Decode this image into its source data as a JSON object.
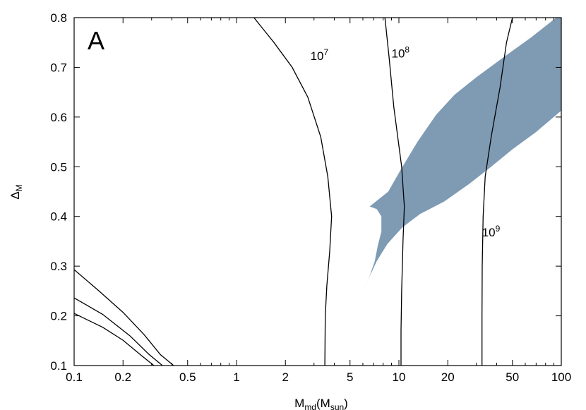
{
  "chart_data": {
    "type": "line",
    "panel_label": "A",
    "xlabel": {
      "main": "M",
      "sub1": "md",
      "mid": "(M",
      "sub2": "sun",
      "end": ")"
    },
    "ylabel": {
      "main": "Δ",
      "sub": "M"
    },
    "x_scale": "log",
    "xlim": [
      0.1,
      100
    ],
    "ylim": [
      0.1,
      0.8
    ],
    "x_ticks": [
      0.1,
      0.2,
      0.5,
      1,
      2,
      5,
      10,
      20,
      50,
      100
    ],
    "x_tick_labels": [
      "0.1",
      "0.2",
      "0.5",
      "1",
      "2",
      "5",
      "10",
      "20",
      "50",
      "100"
    ],
    "y_ticks": [
      0.1,
      0.2,
      0.3,
      0.4,
      0.5,
      0.6,
      0.7,
      0.8
    ],
    "y_tick_labels": [
      "0.1",
      "0.2",
      "0.3",
      "0.4",
      "0.5",
      "0.6",
      "0.7",
      "0.8"
    ],
    "grid": false,
    "shaded_region": {
      "color": "#7f9bb4",
      "boundary": [
        [
          5.6,
          0.228
        ],
        [
          6.4,
          0.27
        ],
        [
          7.3,
          0.31
        ],
        [
          8.5,
          0.345
        ],
        [
          10.5,
          0.378
        ],
        [
          13.5,
          0.405
        ],
        [
          19,
          0.43
        ],
        [
          27,
          0.465
        ],
        [
          37,
          0.5
        ],
        [
          50,
          0.535
        ],
        [
          70,
          0.57
        ],
        [
          100,
          0.613
        ],
        [
          100,
          0.8
        ],
        [
          93,
          0.8
        ],
        [
          65,
          0.76
        ],
        [
          44,
          0.72
        ],
        [
          30,
          0.68
        ],
        [
          22,
          0.645
        ],
        [
          17,
          0.605
        ],
        [
          13,
          0.55
        ],
        [
          10.3,
          0.495
        ],
        [
          8.6,
          0.45
        ],
        [
          6.6,
          0.42
        ],
        [
          7.3,
          0.415
        ],
        [
          7.8,
          0.4
        ],
        [
          7.8,
          0.37
        ],
        [
          7.4,
          0.34
        ],
        [
          7.1,
          0.31
        ],
        [
          6.6,
          0.28
        ],
        [
          5.6,
          0.228
        ]
      ]
    },
    "contours": [
      {
        "label_base": "10",
        "label_exp": "7",
        "label_at": [
          2.85,
          0.715
        ],
        "points": [
          [
            1.28,
            0.8
          ],
          [
            1.7,
            0.75
          ],
          [
            2.2,
            0.7
          ],
          [
            2.75,
            0.64
          ],
          [
            3.3,
            0.56
          ],
          [
            3.65,
            0.48
          ],
          [
            3.85,
            0.4
          ],
          [
            3.75,
            0.33
          ],
          [
            3.6,
            0.26
          ],
          [
            3.52,
            0.2
          ],
          [
            3.5,
            0.1
          ]
        ]
      },
      {
        "label_base": "10",
        "label_exp": "8",
        "label_at": [
          9.0,
          0.72
        ],
        "points": [
          [
            8.2,
            0.8
          ],
          [
            8.7,
            0.72
          ],
          [
            9.3,
            0.62
          ],
          [
            10.4,
            0.5
          ],
          [
            10.8,
            0.42
          ],
          [
            10.6,
            0.35
          ],
          [
            10.4,
            0.25
          ],
          [
            10.3,
            0.17
          ],
          [
            10.3,
            0.1
          ]
        ]
      },
      {
        "label_base": "10",
        "label_exp": "9",
        "label_at": [
          32.5,
          0.36
        ],
        "points": [
          [
            50,
            0.8
          ],
          [
            46,
            0.75
          ],
          [
            42,
            0.66
          ],
          [
            37,
            0.56
          ],
          [
            34,
            0.48
          ],
          [
            33,
            0.4
          ],
          [
            32.6,
            0.3
          ],
          [
            32.5,
            0.2
          ],
          [
            32.5,
            0.1
          ]
        ]
      },
      {
        "points": [
          [
            0.1,
            0.293
          ],
          [
            0.14,
            0.252
          ],
          [
            0.2,
            0.207
          ],
          [
            0.27,
            0.162
          ],
          [
            0.34,
            0.122
          ],
          [
            0.41,
            0.1
          ]
        ]
      },
      {
        "points": [
          [
            0.1,
            0.236
          ],
          [
            0.15,
            0.203
          ],
          [
            0.22,
            0.16
          ],
          [
            0.29,
            0.122
          ],
          [
            0.35,
            0.1
          ]
        ]
      },
      {
        "points": [
          [
            0.1,
            0.205
          ],
          [
            0.15,
            0.177
          ],
          [
            0.2,
            0.151
          ],
          [
            0.26,
            0.12
          ],
          [
            0.31,
            0.1
          ]
        ]
      }
    ]
  }
}
